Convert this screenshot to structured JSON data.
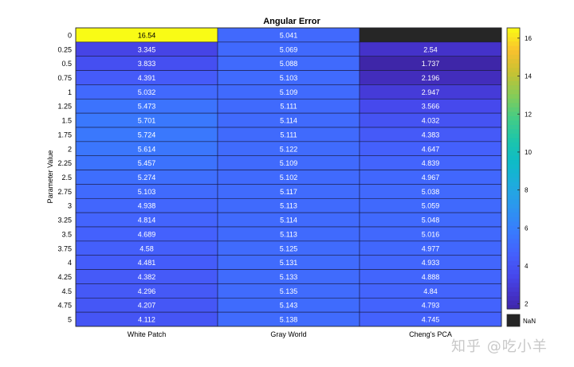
{
  "chart_data": {
    "type": "heatmap",
    "title": "Angular Error",
    "xlabel": "",
    "ylabel": "Parameter Value",
    "columns": [
      "White Patch",
      "Gray World",
      "Cheng's PCA"
    ],
    "rows": [
      "0",
      "0.25",
      "0.5",
      "0.75",
      "1",
      "1.25",
      "1.5",
      "1.75",
      "2",
      "2.25",
      "2.5",
      "2.75",
      "3",
      "3.25",
      "3.5",
      "3.75",
      "4",
      "4.25",
      "4.5",
      "4.75",
      "5"
    ],
    "values": [
      [
        "16.54",
        "5.041",
        null
      ],
      [
        "3.345",
        "5.069",
        "2.54"
      ],
      [
        "3.833",
        "5.088",
        "1.737"
      ],
      [
        "4.391",
        "5.103",
        "2.196"
      ],
      [
        "5.032",
        "5.109",
        "2.947"
      ],
      [
        "5.473",
        "5.111",
        "3.566"
      ],
      [
        "5.701",
        "5.114",
        "4.032"
      ],
      [
        "5.724",
        "5.111",
        "4.383"
      ],
      [
        "5.614",
        "5.122",
        "4.647"
      ],
      [
        "5.457",
        "5.109",
        "4.839"
      ],
      [
        "5.274",
        "5.102",
        "4.967"
      ],
      [
        "5.103",
        "5.117",
        "5.038"
      ],
      [
        "4.938",
        "5.113",
        "5.059"
      ],
      [
        "4.814",
        "5.114",
        "5.048"
      ],
      [
        "4.689",
        "5.113",
        "5.016"
      ],
      [
        "4.58",
        "5.125",
        "4.977"
      ],
      [
        "4.481",
        "5.131",
        "4.933"
      ],
      [
        "4.382",
        "5.133",
        "4.888"
      ],
      [
        "4.296",
        "5.135",
        "4.84"
      ],
      [
        "4.207",
        "5.143",
        "4.793"
      ],
      [
        "4.112",
        "5.138",
        "4.745"
      ]
    ],
    "colorbar": {
      "min": 1.737,
      "max": 16.54,
      "ticks": [
        "2",
        "4",
        "6",
        "8",
        "10",
        "12",
        "14",
        "16"
      ],
      "nan_label": "NaN",
      "nan_color": "#262626",
      "colormap": "parula"
    },
    "grid": true
  },
  "watermark": "知乎 @吃小羊"
}
